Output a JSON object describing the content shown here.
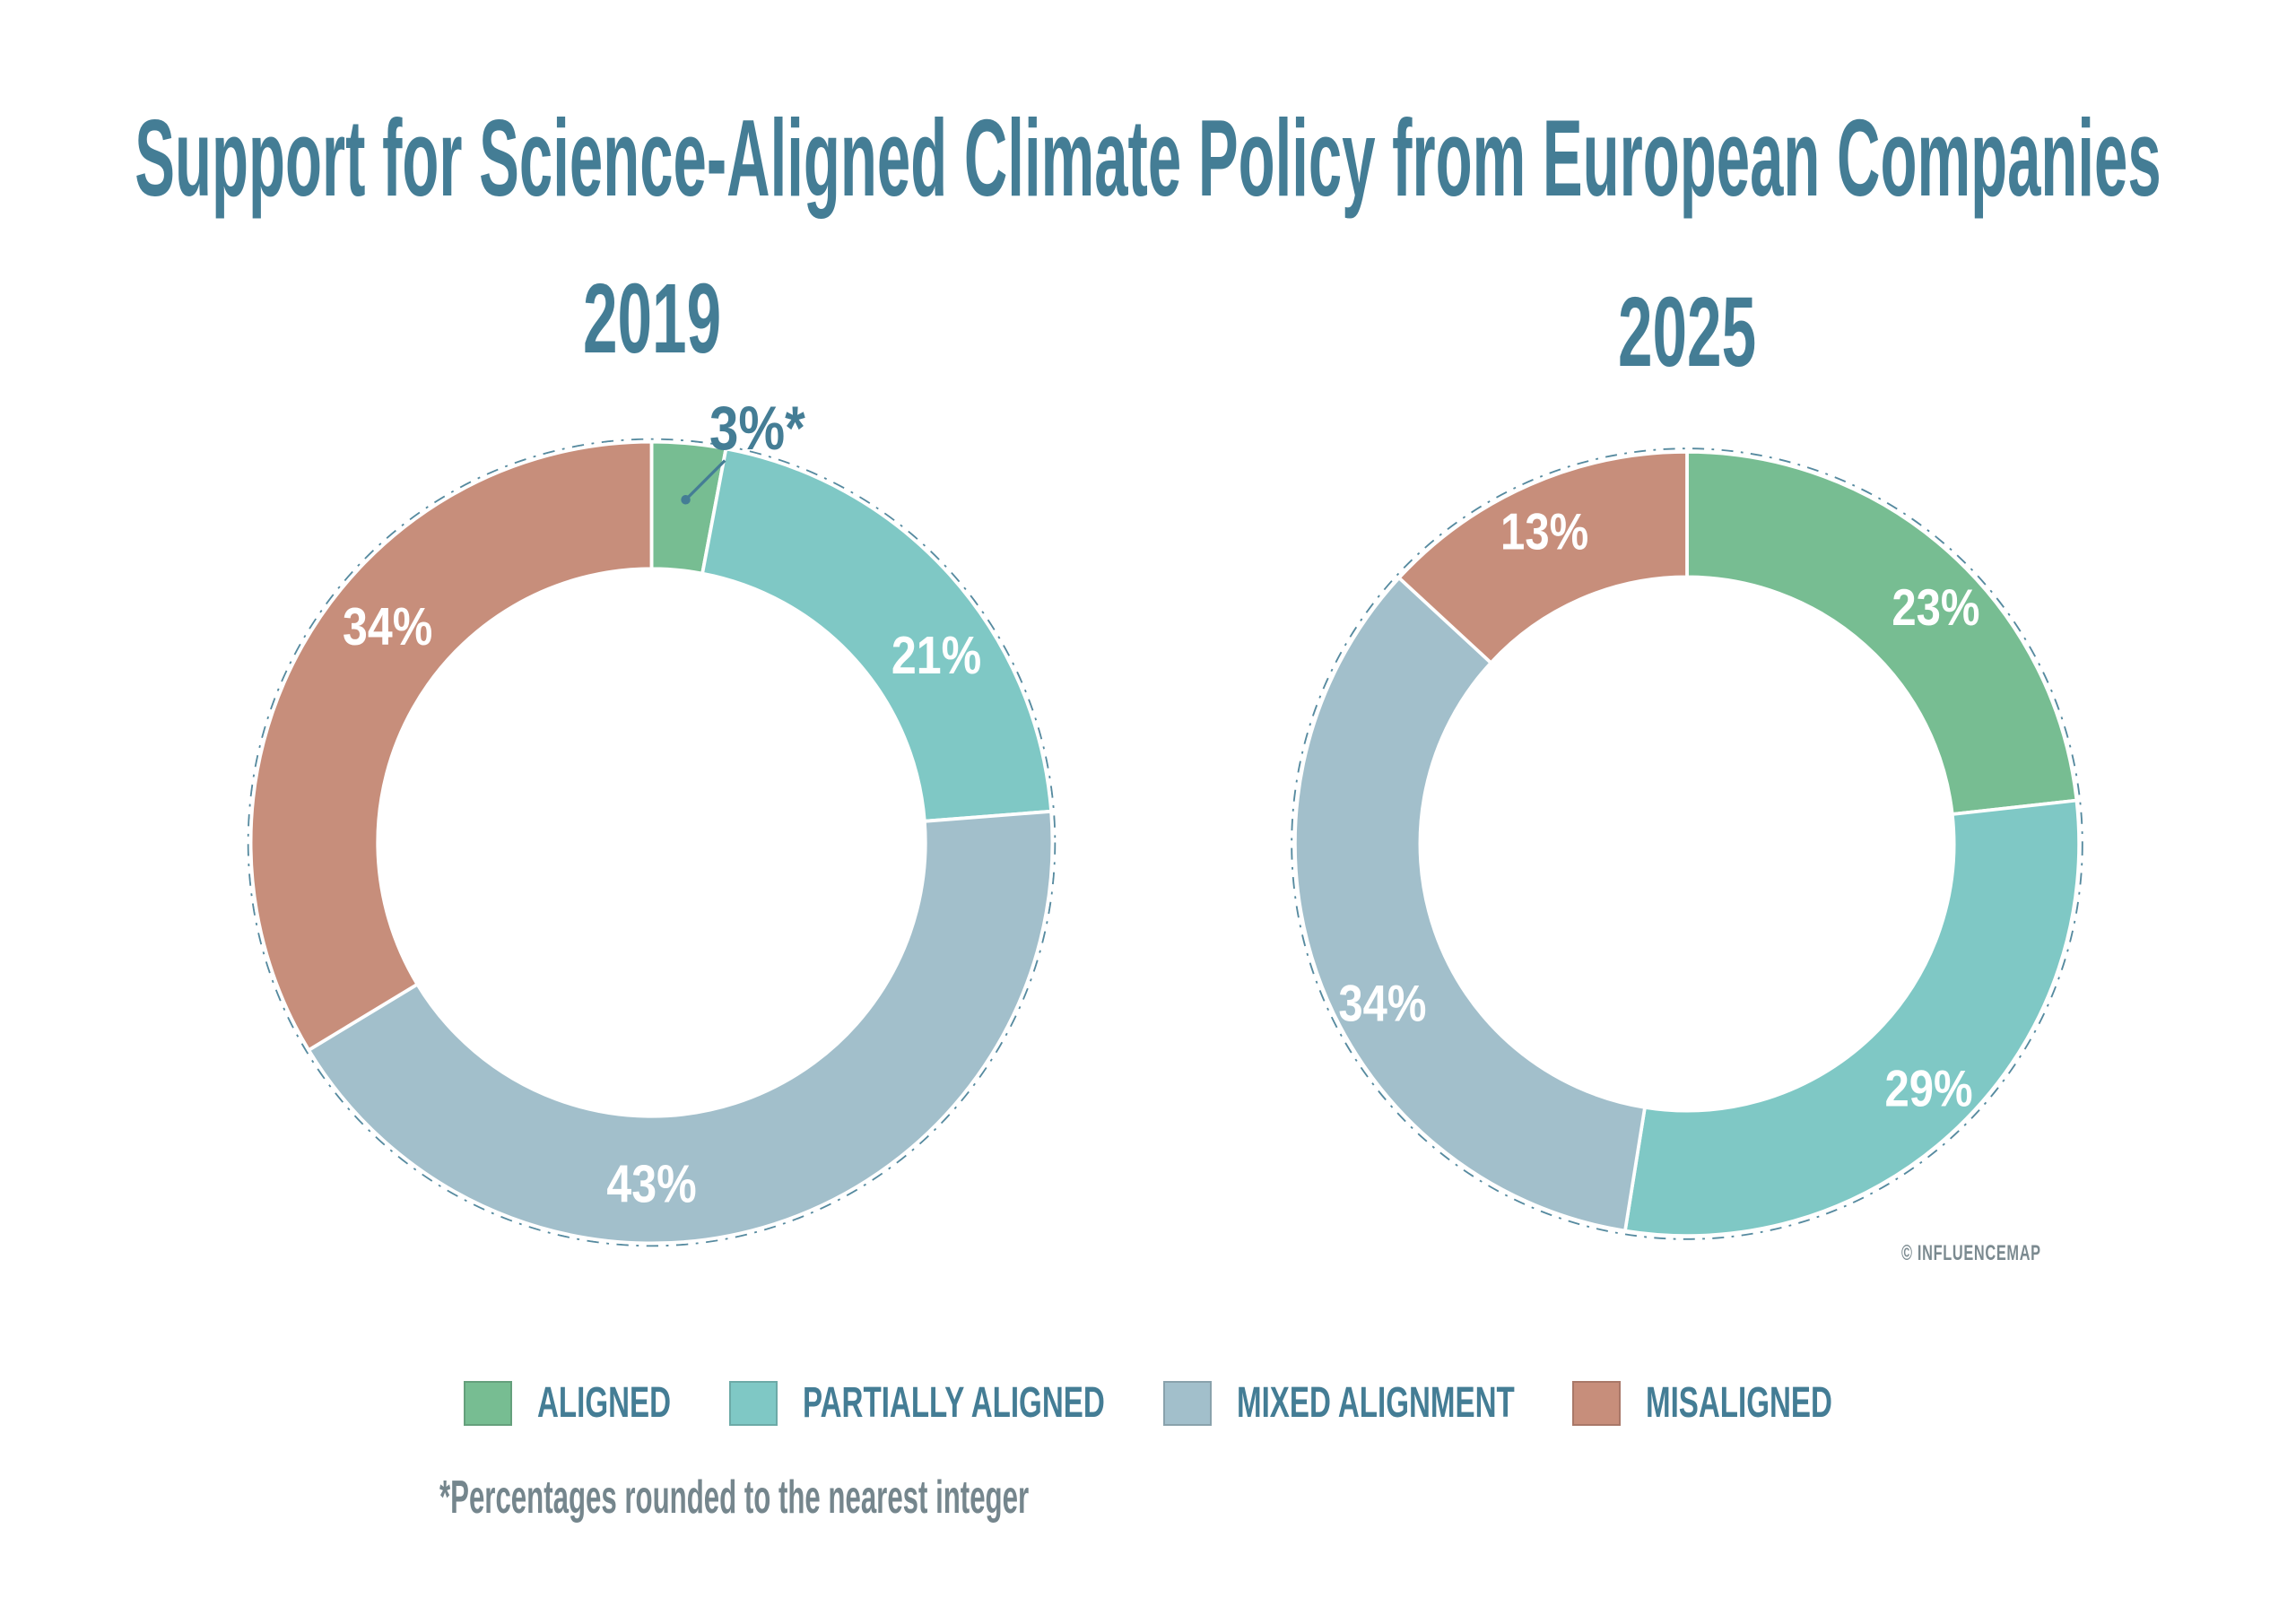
{
  "accent_color": "#447d95",
  "title": {
    "text": "Support for Science-Aligned Climate Policy from European Companies"
  },
  "legend": {
    "items": [
      {
        "label": "ALIGNED",
        "color": "#77bd92"
      },
      {
        "label": "PARTIALLY ALIGNED",
        "color": "#7fc8c5"
      },
      {
        "label": "MIXED ALIGNMENT",
        "color": "#a2bfcb"
      },
      {
        "label": "MISALIGNED",
        "color": "#c78e7b"
      }
    ]
  },
  "footnote": {
    "text": "*Percentages rounded to the nearest integer",
    "color": "#75868d"
  },
  "watermark": {
    "text": "© INFLUENCEMAP",
    "color": "#7b8a90"
  },
  "chart_data": [
    {
      "type": "pie",
      "subtype": "donut",
      "title": "2019",
      "categories": [
        "Aligned",
        "Partially Aligned",
        "Mixed Alignment",
        "Misaligned"
      ],
      "values": [
        3,
        21,
        43,
        34
      ],
      "value_labels": [
        "3%*",
        "21%",
        "43%",
        "34%"
      ],
      "colors": [
        "#77bd92",
        "#7fc8c5",
        "#a2bfcb",
        "#c78e7b"
      ],
      "start_angle_deg": 0,
      "direction": "clockwise",
      "label_color": "#ffffff",
      "label_angles_deg": [
        5.3,
        56.6,
        180,
        309.3
      ],
      "outline": "dashed",
      "callout": {
        "segment_index": 0,
        "text": "3%*",
        "note": "label placed outside ring with leader line and dot"
      }
    },
    {
      "type": "pie",
      "subtype": "donut",
      "title": "2025",
      "categories": [
        "Aligned",
        "Partially Aligned",
        "Mixed Alignment",
        "Misaligned"
      ],
      "values": [
        23,
        29,
        34,
        13
      ],
      "value_labels": [
        "23%",
        "29%",
        "34%",
        "13%"
      ],
      "colors": [
        "#77bd92",
        "#7fc8c5",
        "#a2bfcb",
        "#c78e7b"
      ],
      "start_angle_deg": 0,
      "direction": "clockwise",
      "label_color": "#ffffff",
      "label_angles_deg": [
        46.4,
        135.3,
        242.4,
        335.5
      ],
      "outline": "dashed"
    }
  ]
}
